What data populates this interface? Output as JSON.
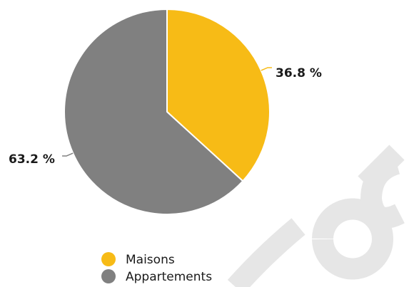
{
  "chart_data": {
    "type": "pie",
    "slices": [
      {
        "label": "Maisons",
        "value": 36.8,
        "display": "36.8 %",
        "color": "#F7BB16"
      },
      {
        "label": "Appartements",
        "value": 63.2,
        "display": "63.2 %",
        "color": "#808080"
      }
    ],
    "start_angle_deg": 0,
    "direction": "clockwise",
    "legend_placement": "bottom-center",
    "title": ""
  },
  "watermark": {
    "text": "Sample",
    "color": "#e6e6e6"
  }
}
